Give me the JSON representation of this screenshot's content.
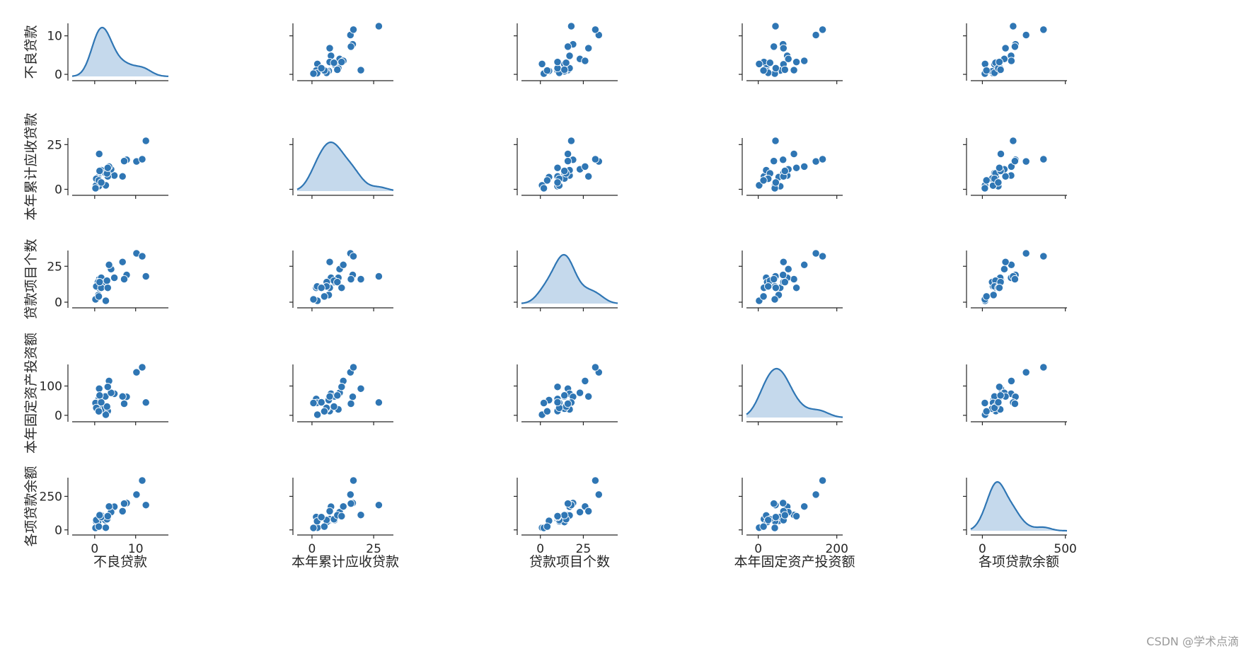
{
  "chart_data": {
    "type": "scatter",
    "variables": [
      "不良贷款",
      "本年累计应收贷款",
      "贷款项目个数",
      "本年固定资产投资额",
      "各项贷款余额"
    ],
    "axis_ranges": [
      [
        -5.5,
        18
      ],
      [
        -6,
        33
      ],
      [
        -11,
        45
      ],
      [
        -30,
        215
      ],
      [
        -70,
        510
      ]
    ],
    "x_ticks": [
      [
        0,
        10
      ],
      [
        0,
        25
      ],
      [
        0,
        25
      ],
      [
        0,
        200
      ],
      [
        0,
        500
      ]
    ],
    "y_ticks": [
      [
        0,
        10
      ],
      [
        0,
        25
      ],
      [
        0,
        25
      ],
      [
        0,
        100
      ],
      [
        0,
        250
      ]
    ],
    "colors": {
      "points": "#2f76b4",
      "kde_line": "#2f76b4",
      "kde_fill": "#c5d9ec",
      "axes": "#262626"
    },
    "watermark": "CSDN @学术点滴",
    "records": [
      [
        0.9,
        6.8,
        5,
        51.9,
        67.3
      ],
      [
        1.1,
        19.8,
        16,
        90.9,
        111.3
      ],
      [
        4.8,
        7.7,
        17,
        73.7,
        173
      ],
      [
        3.2,
        7.2,
        10,
        14.5,
        80.8
      ],
      [
        7.8,
        16.5,
        19,
        63.2,
        199.7
      ],
      [
        2.7,
        2.2,
        1,
        2.2,
        16.2
      ],
      [
        1.6,
        10.7,
        17,
        20.2,
        107.4
      ],
      [
        12.5,
        27.1,
        18,
        43.8,
        185.4
      ],
      [
        1,
        1.7,
        10,
        55.9,
        96.1
      ],
      [
        2.6,
        9.1,
        14,
        64.3,
        72.8
      ],
      [
        0.3,
        2.1,
        11,
        42.7,
        64.2
      ],
      [
        4,
        11.2,
        23,
        76.7,
        132.2
      ],
      [
        0.8,
        6,
        14,
        22.8,
        58.6
      ],
      [
        3.5,
        12.7,
        26,
        117.1,
        174.6
      ],
      [
        10.2,
        15.6,
        34,
        146.7,
        263.5
      ],
      [
        3,
        8.9,
        15,
        29.9,
        79.3
      ],
      [
        0.2,
        0.6,
        2,
        42.1,
        14.8
      ],
      [
        0.4,
        5.9,
        11,
        25.3,
        73.5
      ],
      [
        1,
        5,
        4,
        13.4,
        24.7
      ],
      [
        6.8,
        7.2,
        28,
        64.3,
        139.4
      ],
      [
        11.6,
        16.8,
        32,
        163.9,
        368.2
      ],
      [
        1.6,
        3.8,
        10,
        44.5,
        95.7
      ],
      [
        1.2,
        10.3,
        14,
        67.9,
        109.6
      ],
      [
        7.2,
        15.8,
        16,
        39.7,
        196.2
      ],
      [
        3.2,
        12,
        10,
        97.1,
        102.2
      ]
    ]
  }
}
